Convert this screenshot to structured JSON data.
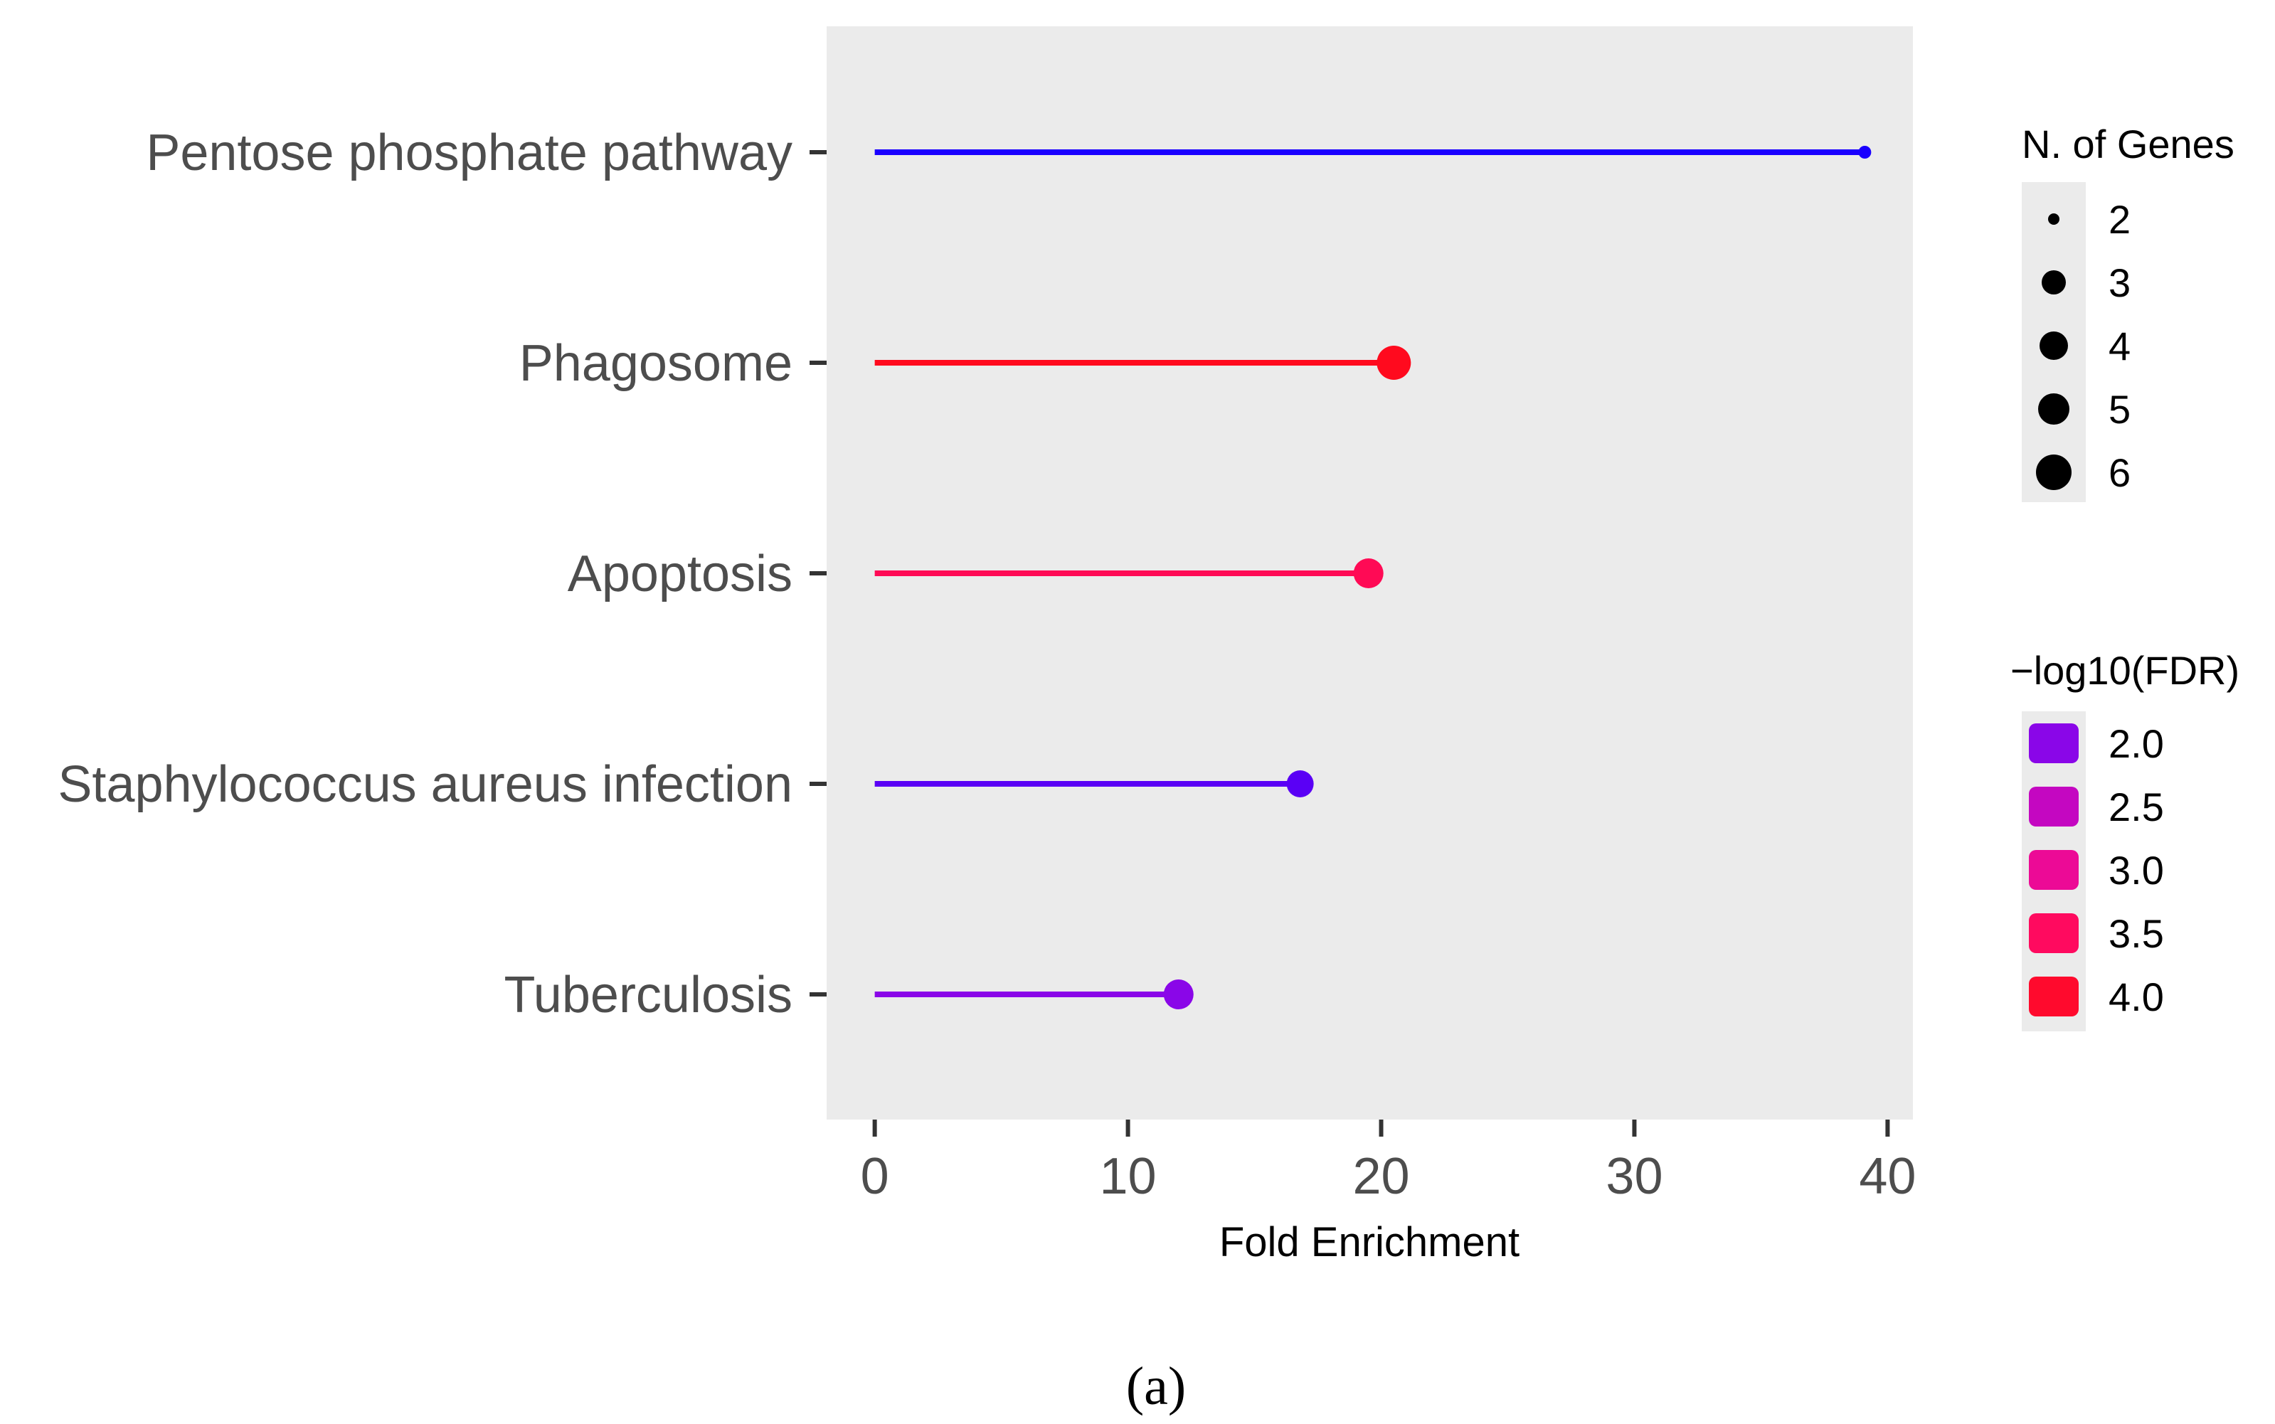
{
  "chart_data": {
    "type": "lollipop",
    "title": "",
    "xlabel": "Fold Enrichment",
    "ylabel": "",
    "xlim": [
      -1.9,
      41
    ],
    "x_ticks": [
      0,
      10,
      20,
      30,
      40
    ],
    "x_tick_labels": [
      "0",
      "10",
      "20",
      "30",
      "40"
    ],
    "grid": false,
    "panel_background": "#ebebeb",
    "categories": [
      "Pentose phosphate pathway",
      "Phagosome",
      "Apoptosis",
      "Staphylococcus aureus infection",
      "Tuberculosis"
    ],
    "points": [
      {
        "pathway": "Pentose phosphate pathway",
        "fold_enrichment": 39.1,
        "n_genes": 2,
        "neg_log10_fdr": 1.2,
        "color": "#1a00ff"
      },
      {
        "pathway": "Phagosome",
        "fold_enrichment": 20.5,
        "n_genes": 6,
        "neg_log10_fdr": 4.1,
        "color": "#ff0a1e"
      },
      {
        "pathway": "Apoptosis",
        "fold_enrichment": 19.5,
        "n_genes": 5,
        "neg_log10_fdr": 3.6,
        "color": "#ff0a55"
      },
      {
        "pathway": "Staphylococcus aureus infection",
        "fold_enrichment": 16.8,
        "n_genes": 4,
        "neg_log10_fdr": 1.6,
        "color": "#5a00f5"
      },
      {
        "pathway": "Tuberculosis",
        "fold_enrichment": 12.0,
        "n_genes": 5,
        "neg_log10_fdr": 2.0,
        "color": "#8a06e8"
      }
    ],
    "legend_size": {
      "title": "N. of Genes",
      "entries": [
        {
          "label": "2",
          "n": 2
        },
        {
          "label": "3",
          "n": 3
        },
        {
          "label": "4",
          "n": 4
        },
        {
          "label": "5",
          "n": 5
        },
        {
          "label": "6",
          "n": 6
        }
      ],
      "placement": "right-top"
    },
    "legend_color": {
      "title": "−log10(FDR)",
      "entries": [
        {
          "label": "2.0",
          "color": "#8a06e8"
        },
        {
          "label": "2.5",
          "color": "#c407c1"
        },
        {
          "label": "3.0",
          "color": "#ec0a96"
        },
        {
          "label": "3.5",
          "color": "#ff0a5f"
        },
        {
          "label": "4.0",
          "color": "#ff0a2d"
        }
      ],
      "placement": "right-middle"
    }
  },
  "caption": "(a)"
}
